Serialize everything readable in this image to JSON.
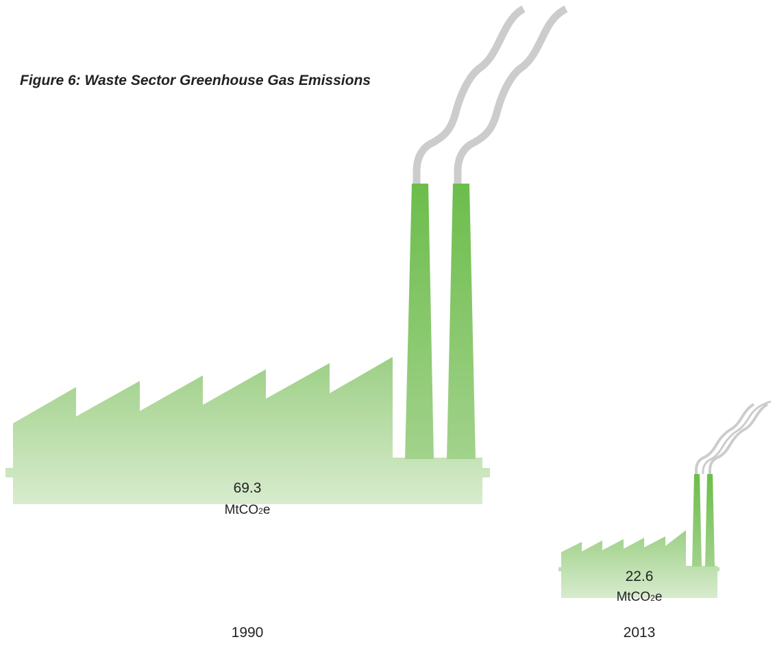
{
  "title": "Figure 6: Waste Sector Greenhouse Gas Emissions",
  "chart_data": {
    "type": "bar",
    "categories": [
      "1990",
      "2013"
    ],
    "values": [
      69.3,
      22.6
    ],
    "value_labels": [
      "69.3",
      "22.6"
    ],
    "unit": {
      "prefix": "MtCO",
      "subscript": "2",
      "suffix": "e"
    },
    "colors": {
      "building_top": "#9ccf85",
      "building_bottom": "#d8ecce",
      "chimney_top": "#6cbd4b",
      "chimney_bottom": "#a2d28c",
      "smoke": "#cccccc"
    }
  }
}
